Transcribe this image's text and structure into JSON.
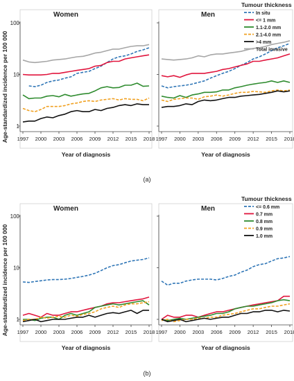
{
  "chart_data": [
    {
      "type": "line",
      "panel_label": "(a)",
      "ylabel": "Age-standardized incidence per 100 000",
      "yscale": "log",
      "ylim": [
        1,
        100
      ],
      "yticks": [
        1,
        10,
        100
      ],
      "xlim": [
        1997,
        2018
      ],
      "xticks": [
        1997,
        2000,
        2003,
        2006,
        2009,
        2012,
        2015,
        2018
      ],
      "legend_title": "Tumour thickness",
      "legend_position": "top-right",
      "subplots": [
        {
          "title": "Women",
          "xlabel": "Year of diagnosis",
          "series": [
            {
              "name": "In situ",
              "color": "#2e75b6",
              "dash": "4,2",
              "values": [
                null,
                6,
                5.8,
                6.2,
                7,
                7.5,
                7.8,
                8.5,
                9,
                10.5,
                11,
                11.5,
                13,
                14.5,
                17,
                20,
                22,
                23,
                25,
                28,
                30,
                33
              ]
            },
            {
              "name": "<= 1 mm",
              "color": "#e0143c",
              "dash": "",
              "values": [
                10,
                9.8,
                9.8,
                9.8,
                10,
                10.5,
                10.5,
                11,
                11.5,
                12,
                12.5,
                13,
                14.5,
                15,
                17,
                18,
                18,
                20,
                21,
                22,
                23,
                24
              ]
            },
            {
              "name": "1.1-2.0 mm",
              "color": "#2e8b2e",
              "dash": "",
              "values": [
                4,
                3.4,
                3.5,
                3.5,
                3.8,
                3.9,
                3.7,
                4.1,
                3.8,
                4,
                4.2,
                4.3,
                4.8,
                5.5,
                5.8,
                5.5,
                5.6,
                6.2,
                6.2,
                6.8,
                5.9,
                6
              ]
            },
            {
              "name": "2.1-4.0 mm",
              "color": "#f0a020",
              "dash": "4,2",
              "values": [
                2.2,
                2,
                1.9,
                2.1,
                2.4,
                2.4,
                2.4,
                2.5,
                2.7,
                2.8,
                3,
                3.1,
                3,
                3.2,
                3.3,
                3.4,
                3.2,
                3.4,
                3.3,
                3.3,
                3.1,
                3.5
              ]
            },
            {
              "name": ">4 mm",
              "color": "#111111",
              "dash": "",
              "values": [
                1.2,
                1.25,
                1.25,
                1.4,
                1.5,
                1.45,
                1.6,
                1.7,
                1.9,
                2,
                1.9,
                1.9,
                2.1,
                2,
                2.2,
                2.3,
                2.5,
                2.6,
                2.5,
                2.7,
                2.6,
                2.6
              ]
            },
            {
              "name": "Total invasive",
              "color": "#a6a6a6",
              "dash": "",
              "values": [
                19,
                17.5,
                17,
                17.5,
                18,
                19,
                19.5,
                20,
                21,
                22,
                22.5,
                24,
                26,
                27,
                29,
                31,
                31,
                33,
                35,
                36,
                36,
                38
              ]
            }
          ]
        },
        {
          "title": "Men",
          "xlabel": "Year of diagnosis",
          "series": [
            {
              "name": "In situ",
              "color": "#2e75b6",
              "dash": "4,2",
              "values": [
                6,
                5.5,
                5.8,
                6,
                6.2,
                6.5,
                7,
                7.5,
                8.5,
                9.5,
                10.5,
                11.5,
                13,
                15,
                17,
                20,
                22,
                25,
                29,
                33,
                36,
                40
              ]
            },
            {
              "name": "<= 1 mm",
              "color": "#e0143c",
              "dash": "",
              "values": [
                9.5,
                9,
                9.5,
                8.8,
                9.8,
                10.5,
                10.5,
                10.5,
                11,
                11.5,
                12.5,
                13,
                14,
                15,
                16,
                18,
                18,
                19,
                20,
                21,
                23,
                25
              ]
            },
            {
              "name": "1.1-2.0 mm",
              "color": "#2e8b2e",
              "dash": "",
              "values": [
                3.8,
                3.6,
                3.5,
                3.9,
                3.6,
                4,
                4.2,
                4.5,
                4.5,
                4.6,
                5,
                5,
                5.5,
                5.8,
                6.2,
                6.5,
                6.8,
                7,
                7.5,
                7,
                7.5,
                7
              ]
            },
            {
              "name": "2.1-4.0 mm",
              "color": "#f0a020",
              "dash": "4,2",
              "values": [
                3.2,
                3,
                3.3,
                3.4,
                3.5,
                3.5,
                3.3,
                3.7,
                3.8,
                4,
                3.8,
                4,
                4.3,
                4.5,
                4.5,
                4.7,
                4.6,
                4.5,
                4.8,
                5,
                4.8,
                5
              ]
            },
            {
              "name": ">4 mm",
              "color": "#111111",
              "dash": "",
              "values": [
                2.3,
                2.4,
                2.4,
                2.5,
                2.7,
                2.6,
                3,
                3.2,
                3.1,
                3.2,
                3.4,
                3.6,
                3.6,
                3.8,
                3.9,
                4,
                4.1,
                4.3,
                4.5,
                4.8,
                4.6,
                4.8
              ]
            },
            {
              "name": "Total invasive",
              "color": "#a6a6a6",
              "dash": "",
              "values": [
                20,
                19.5,
                19,
                19.5,
                20,
                21,
                23,
                22,
                24,
                25,
                25,
                26,
                27,
                28,
                30,
                32,
                33,
                35,
                38,
                40,
                42,
                45
              ]
            }
          ]
        }
      ]
    },
    {
      "type": "line",
      "panel_label": "(b)",
      "ylabel": "Age-standardized incidence per 100 000",
      "yscale": "log",
      "ylim": [
        1,
        100
      ],
      "yticks": [
        1,
        10,
        100
      ],
      "xlim": [
        1997,
        2018
      ],
      "xticks": [
        1997,
        2000,
        2003,
        2006,
        2009,
        2012,
        2015,
        2018
      ],
      "legend_title": "Tumour thickness",
      "legend_position": "top-right",
      "subplots": [
        {
          "title": "Women",
          "xlabel": "Year of diagnosis",
          "series": [
            {
              "name": "<= 0.6 mm",
              "color": "#2e75b6",
              "dash": "4,2",
              "values": [
                5.3,
                5.2,
                5.4,
                5.6,
                5.8,
                5.9,
                5.9,
                6,
                6.2,
                6.5,
                6.8,
                7.2,
                7.8,
                8.8,
                10,
                11,
                11.5,
                12.5,
                13.5,
                14,
                14.5,
                15.5
              ]
            },
            {
              "name": "0.7 mm",
              "color": "#e0143c",
              "dash": "",
              "values": [
                1.2,
                1.3,
                1.2,
                1.1,
                1.3,
                1.2,
                1.2,
                1.3,
                1.4,
                1.4,
                1.5,
                1.6,
                1.7,
                1.8,
                2,
                2.1,
                2.1,
                2.2,
                2.3,
                2.4,
                2.5,
                2.7
              ]
            },
            {
              "name": "0.8 mm",
              "color": "#2e8b2e",
              "dash": "",
              "values": [
                1,
                1,
                0.95,
                1.05,
                1.1,
                1.1,
                1,
                1.2,
                1.3,
                1.2,
                1.3,
                1.4,
                1.7,
                1.8,
                1.9,
                2,
                1.9,
                2,
                2.1,
                2.2,
                2.3,
                1.9
              ]
            },
            {
              "name": "0.9 mm",
              "color": "#f0a020",
              "dash": "4,2",
              "values": [
                0.95,
                1,
                1,
                1.1,
                1.05,
                1.1,
                1.15,
                1.1,
                1.2,
                1.15,
                1.25,
                1.3,
                1.4,
                1.6,
                1.7,
                1.8,
                1.7,
                1.9,
                2,
                2,
                2.1,
                2.2
              ]
            },
            {
              "name": "1.0 mm",
              "color": "#111111",
              "dash": "",
              "values": [
                0.9,
                0.95,
                1,
                0.9,
                0.95,
                1,
                1,
                1,
                1.05,
                1.1,
                1.1,
                1.2,
                1.1,
                1.2,
                1.3,
                1.35,
                1.3,
                1.4,
                1.5,
                1.3,
                1.5,
                1.5
              ]
            }
          ]
        },
        {
          "title": "Men",
          "xlabel": "Year of diagnosis",
          "series": [
            {
              "name": "<= 0.6 mm",
              "color": "#2e75b6",
              "dash": "4,2",
              "values": [
                5.5,
                4.6,
                5,
                5,
                5.5,
                5.8,
                6,
                6,
                6,
                5.8,
                6.2,
                6.8,
                7.2,
                8.2,
                9,
                10.5,
                11.5,
                12,
                13.5,
                15,
                15.5,
                16.5
              ]
            },
            {
              "name": "0.7 mm",
              "color": "#e0143c",
              "dash": "",
              "values": [
                1,
                1.2,
                1.1,
                1.1,
                1.2,
                1.2,
                1.1,
                1.2,
                1.3,
                1.4,
                1.4,
                1.5,
                1.6,
                1.7,
                1.8,
                1.9,
                2,
                2.1,
                2.2,
                2.3,
                2.8,
                2.8
              ]
            },
            {
              "name": "0.8 mm",
              "color": "#2e8b2e",
              "dash": "",
              "values": [
                1,
                0.95,
                1,
                1.05,
                1,
                1.05,
                1.1,
                1.15,
                1.2,
                1.3,
                1.3,
                1.4,
                1.6,
                1.7,
                1.8,
                1.8,
                1.9,
                2,
                2.1,
                2.3,
                2.4,
                2.3
              ]
            },
            {
              "name": "0.9 mm",
              "color": "#f0a020",
              "dash": "4,2",
              "values": [
                0.95,
                1,
                0.9,
                0.95,
                1,
                1,
                1.05,
                1.05,
                1.1,
                1.1,
                1.2,
                1.25,
                1.3,
                1.4,
                1.5,
                1.6,
                1.6,
                1.7,
                1.8,
                1.8,
                1.9,
                2
              ]
            },
            {
              "name": "1.0 mm",
              "color": "#111111",
              "dash": "",
              "values": [
                1,
                0.9,
                0.95,
                1,
                0.9,
                0.95,
                1,
                1.05,
                1,
                1.05,
                1.1,
                1.1,
                1.2,
                1.3,
                1.3,
                1.4,
                1.4,
                1.5,
                1.5,
                1.4,
                1.5,
                1.45
              ]
            }
          ]
        }
      ]
    }
  ]
}
